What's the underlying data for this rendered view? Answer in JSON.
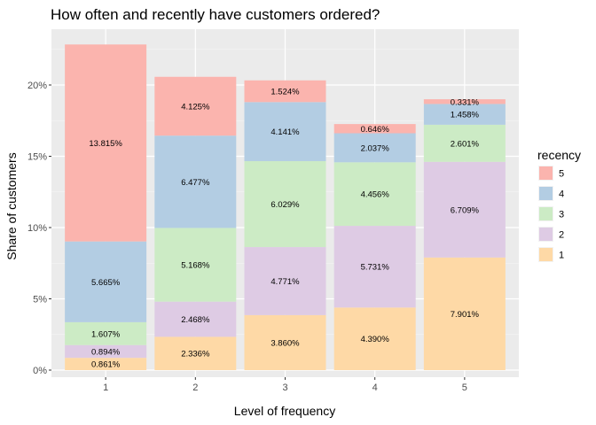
{
  "chart_data": {
    "type": "bar",
    "stacked": true,
    "title": "How often and recently have customers ordered?",
    "xlabel": "Level of frequency",
    "ylabel": "Share of customers",
    "categories": [
      "1",
      "2",
      "3",
      "4",
      "5"
    ],
    "ylim": [
      0,
      24
    ],
    "yticks": [
      0,
      5,
      10,
      15,
      20
    ],
    "ytick_labels": [
      "0%",
      "5%",
      "10%",
      "15%",
      "20%"
    ],
    "grid": true,
    "legend": {
      "title": "recency",
      "placement": "right"
    },
    "series": [
      {
        "name": "1",
        "color": "#fed9a6",
        "values": [
          0.861,
          2.336,
          3.86,
          4.39,
          7.901
        ],
        "labels": [
          "0.861%",
          "2.336%",
          "3.860%",
          "4.390%",
          "7.901%"
        ]
      },
      {
        "name": "2",
        "color": "#decbe4",
        "values": [
          0.894,
          2.468,
          4.771,
          5.731,
          6.709
        ],
        "labels": [
          "0.894%",
          "2.468%",
          "4.771%",
          "5.731%",
          "6.709%"
        ]
      },
      {
        "name": "3",
        "color": "#ccebc5",
        "values": [
          1.607,
          5.168,
          6.029,
          4.456,
          2.601
        ],
        "labels": [
          "1.607%",
          "5.168%",
          "6.029%",
          "4.456%",
          "2.601%"
        ]
      },
      {
        "name": "4",
        "color": "#b3cde3",
        "values": [
          5.665,
          6.477,
          4.141,
          2.037,
          1.458
        ],
        "labels": [
          "5.665%",
          "6.477%",
          "4.141%",
          "2.037%",
          "1.458%"
        ]
      },
      {
        "name": "5",
        "color": "#fbb4ae",
        "values": [
          13.815,
          4.125,
          1.524,
          0.646,
          0.331
        ],
        "labels": [
          "13.815%",
          "4.125%",
          "1.524%",
          "0.646%",
          "0.331%"
        ]
      }
    ],
    "legend_order": [
      "5",
      "4",
      "3",
      "2",
      "1"
    ]
  }
}
